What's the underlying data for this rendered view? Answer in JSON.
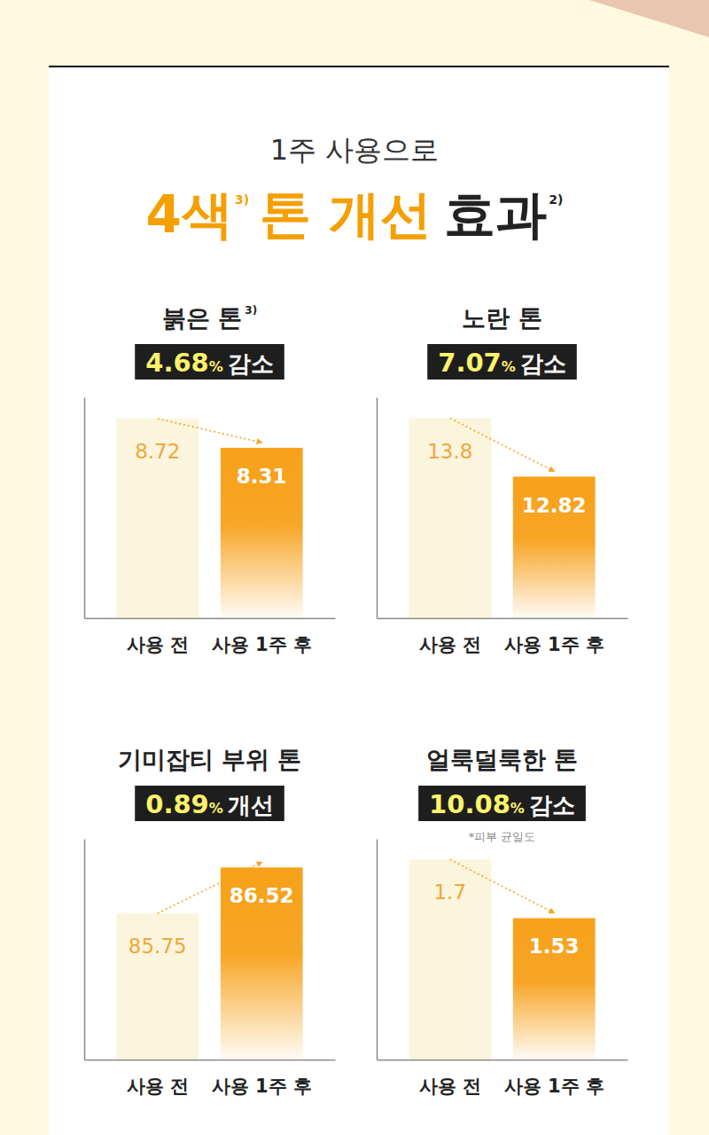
{
  "header": {
    "line1": "1주 사용으로",
    "highlight": "4색",
    "highlight_note": "3)",
    "highlight2": "톤 개선",
    "tail": "효과",
    "tail_note": "2)"
  },
  "chart_data": [
    {
      "type": "bar",
      "title": "붉은 톤",
      "title_note": "3)",
      "badge_value": 4.68,
      "badge_unit": "%",
      "badge_text": "감소",
      "categories": [
        "사용 전",
        "사용 1주 후"
      ],
      "values": [
        8.72,
        8.31
      ],
      "colors": [
        "#faf5dc",
        "#f7a11a"
      ],
      "ylim": [
        5.92,
        9.02
      ],
      "yticks": [],
      "tick_labels": "x",
      "data_labels": true
    },
    {
      "type": "bar",
      "title": "노란 톤",
      "badge_value": 7.07,
      "badge_unit": "%",
      "badge_text": "감소",
      "categories": [
        "사용 전",
        "사용 1주 후"
      ],
      "values": [
        13.8,
        12.82
      ],
      "colors": [
        "#faf5dc",
        "#f7a11a"
      ],
      "ylim": [
        10.45,
        14.15
      ],
      "yticks": [],
      "tick_labels": "x",
      "data_labels": true
    },
    {
      "type": "bar",
      "title": "기미잡티 부위 톤",
      "badge_value": 0.89,
      "badge_unit": "%",
      "badge_text": "개선",
      "categories": [
        "사용 전",
        "사용 1주 후"
      ],
      "values": [
        85.75,
        86.52
      ],
      "colors": [
        "#faf5dc",
        "#f7a11a"
      ],
      "ylim": [
        83.3,
        87.0
      ],
      "yticks": [],
      "tick_labels": "x",
      "data_labels": true
    },
    {
      "type": "bar",
      "title": "얼룩덜룩한 톤",
      "badge_value": 10.08,
      "badge_unit": "%",
      "badge_text": "감소",
      "note": "*피부 균일도",
      "categories": [
        "사용 전",
        "사용 1주 후"
      ],
      "values": [
        1.7,
        1.53
      ],
      "colors": [
        "#faf5dc",
        "#f7a11a"
      ],
      "ylim": [
        1.12,
        1.76
      ],
      "yticks": [],
      "tick_labels": "x",
      "data_labels": true
    }
  ]
}
